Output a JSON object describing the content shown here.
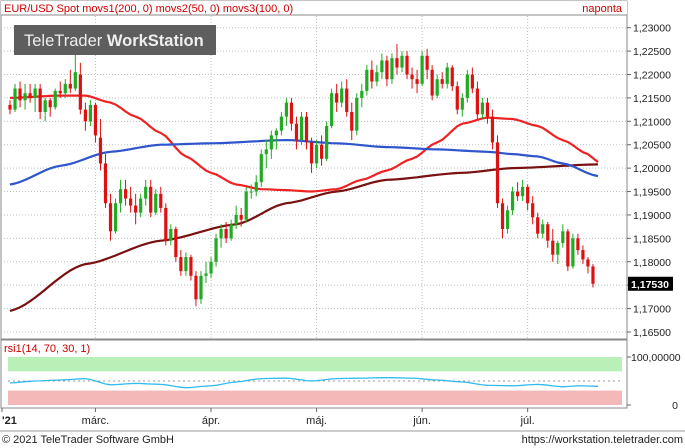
{
  "header": {
    "title": "EUR/USD Spot movs1(200, 0) movs2(50, 0) movs3(100, 0)",
    "period": "naponta"
  },
  "logo": {
    "text_plain": "TeleTrader ",
    "text_bold": "WorkStation"
  },
  "footer": {
    "copyright": "© 2021 TeleTrader Software GmbH",
    "url": "https://workstation.teletrader.com"
  },
  "colors": {
    "up_candle": "#22aa22",
    "down_candle": "#dd1111",
    "movs1": "#7a1010",
    "movs2": "#ee2222",
    "movs3": "#2e55cc",
    "rsi_line": "#33bbee",
    "rsi_high_band": "#b8f0b8",
    "rsi_low_band": "#f5b8b8",
    "grid": "#b8c0c8"
  },
  "chart_data": [
    {
      "type": "candlestick",
      "title": "EUR/USD Spot",
      "y_ticks": [
        "1,23000",
        "1,22500",
        "1,22000",
        "1,21500",
        "1,21000",
        "1,20500",
        "1,20000",
        "1,19500",
        "1,19000",
        "1,18500",
        "1,18000",
        "1,17500",
        "1,17000",
        "1,16500"
      ],
      "ylim": [
        1.1635,
        1.2325
      ],
      "last_price_label": "1,17530",
      "last_price": 1.1753,
      "x_labels": [
        "'21",
        "márc.",
        "ápr.",
        "máj.",
        "jún.",
        "júl."
      ],
      "x_label_positions": [
        0,
        17,
        40,
        61,
        82,
        103
      ],
      "n_days": 118,
      "grid": true,
      "candles": [
        [
          1.2135,
          1.2145,
          1.2115,
          1.2125
        ],
        [
          1.2125,
          1.218,
          1.212,
          1.217
        ],
        [
          1.217,
          1.2185,
          1.213,
          1.2145
        ],
        [
          1.2145,
          1.218,
          1.2125,
          1.216
        ],
        [
          1.216,
          1.218,
          1.214,
          1.215
        ],
        [
          1.215,
          1.218,
          1.212,
          1.217
        ],
        [
          1.217,
          1.218,
          1.2105,
          1.212
        ],
        [
          1.212,
          1.215,
          1.21,
          1.2145
        ],
        [
          1.2145,
          1.215,
          1.211,
          1.213
        ],
        [
          1.213,
          1.217,
          1.2125,
          1.2165
        ],
        [
          1.2165,
          1.2185,
          1.215,
          1.216
        ],
        [
          1.216,
          1.219,
          1.215,
          1.218
        ],
        [
          1.218,
          1.221,
          1.216,
          1.217
        ],
        [
          1.217,
          1.2245,
          1.2165,
          1.2205
        ],
        [
          1.22,
          1.2225,
          1.2115,
          1.2125
        ],
        [
          1.2125,
          1.214,
          1.208,
          1.21
        ],
        [
          1.21,
          1.2145,
          1.209,
          1.2135
        ],
        [
          1.2135,
          1.214,
          1.2055,
          1.207
        ],
        [
          1.2065,
          1.2105,
          1.1995,
          1.201
        ],
        [
          1.201,
          1.203,
          1.1915,
          1.1925
        ],
        [
          1.1925,
          1.1945,
          1.1845,
          1.1865
        ],
        [
          1.1865,
          1.1935,
          1.186,
          1.1925
        ],
        [
          1.1925,
          1.1975,
          1.1905,
          1.1955
        ],
        [
          1.1955,
          1.1975,
          1.192,
          1.1935
        ],
        [
          1.1935,
          1.196,
          1.1905,
          1.192
        ],
        [
          1.192,
          1.1945,
          1.188,
          1.1905
        ],
        [
          1.1905,
          1.1945,
          1.1895,
          1.1935
        ],
        [
          1.1935,
          1.1975,
          1.192,
          1.196
        ],
        [
          1.196,
          1.1975,
          1.1895,
          1.1905
        ],
        [
          1.1905,
          1.1955,
          1.19,
          1.1945
        ],
        [
          1.1945,
          1.196,
          1.1905,
          1.1915
        ],
        [
          1.1915,
          1.1925,
          1.1835,
          1.1845
        ],
        [
          1.1845,
          1.188,
          1.1835,
          1.187
        ],
        [
          1.187,
          1.1875,
          1.18,
          1.181
        ],
        [
          1.181,
          1.1825,
          1.177,
          1.178
        ],
        [
          1.178,
          1.182,
          1.177,
          1.181
        ],
        [
          1.181,
          1.1815,
          1.176,
          1.177
        ],
        [
          1.177,
          1.178,
          1.1705,
          1.172
        ],
        [
          1.172,
          1.178,
          1.171,
          1.177
        ],
        [
          1.177,
          1.18,
          1.1755,
          1.1775
        ],
        [
          1.1775,
          1.181,
          1.1765,
          1.18
        ],
        [
          1.18,
          1.186,
          1.179,
          1.185
        ],
        [
          1.185,
          1.188,
          1.183,
          1.187
        ],
        [
          1.187,
          1.1885,
          1.184,
          1.185
        ],
        [
          1.185,
          1.189,
          1.1845,
          1.188
        ],
        [
          1.188,
          1.192,
          1.187,
          1.19
        ],
        [
          1.19,
          1.1915,
          1.1875,
          1.189
        ],
        [
          1.189,
          1.196,
          1.1885,
          1.195
        ],
        [
          1.195,
          1.1965,
          1.1935,
          1.195
        ],
        [
          1.195,
          1.1985,
          1.194,
          1.197
        ],
        [
          1.197,
          1.204,
          1.196,
          1.203
        ],
        [
          1.203,
          1.206,
          1.2,
          1.204
        ],
        [
          1.204,
          1.208,
          1.202,
          1.207
        ],
        [
          1.207,
          1.2085,
          1.204,
          1.208
        ],
        [
          1.208,
          1.212,
          1.207,
          1.211
        ],
        [
          1.211,
          1.215,
          1.209,
          1.214
        ],
        [
          1.214,
          1.215,
          1.208,
          1.2095
        ],
        [
          1.2095,
          1.211,
          1.204,
          1.206
        ],
        [
          1.206,
          1.212,
          1.205,
          1.211
        ],
        [
          1.211,
          1.212,
          1.204,
          1.2055
        ],
        [
          1.2055,
          1.2065,
          1.199,
          1.201
        ],
        [
          1.201,
          1.206,
          1.2,
          1.205
        ],
        [
          1.205,
          1.207,
          1.2005,
          1.202
        ],
        [
          1.202,
          1.21,
          1.2015,
          1.209
        ],
        [
          1.209,
          1.217,
          1.2085,
          1.216
        ],
        [
          1.216,
          1.218,
          1.212,
          1.214
        ],
        [
          1.214,
          1.2185,
          1.213,
          1.217
        ],
        [
          1.217,
          1.219,
          1.211,
          1.212
        ],
        [
          1.212,
          1.214,
          1.206,
          1.208
        ],
        [
          1.208,
          1.216,
          1.207,
          1.215
        ],
        [
          1.215,
          1.218,
          1.213,
          1.2165
        ],
        [
          1.2165,
          1.222,
          1.2155,
          1.221
        ],
        [
          1.221,
          1.223,
          1.217,
          1.2185
        ],
        [
          1.2185,
          1.222,
          1.2175,
          1.2205
        ],
        [
          1.2205,
          1.2245,
          1.219,
          1.223
        ],
        [
          1.223,
          1.224,
          1.2175,
          1.219
        ],
        [
          1.219,
          1.2245,
          1.218,
          1.2235
        ],
        [
          1.2235,
          1.2265,
          1.22,
          1.2215
        ],
        [
          1.2215,
          1.225,
          1.2205,
          1.224
        ],
        [
          1.224,
          1.225,
          1.219,
          1.22
        ],
        [
          1.22,
          1.2215,
          1.217,
          1.219
        ],
        [
          1.219,
          1.221,
          1.216,
          1.218
        ],
        [
          1.218,
          1.225,
          1.2175,
          1.224
        ],
        [
          1.224,
          1.2255,
          1.219,
          1.221
        ],
        [
          1.221,
          1.222,
          1.2145,
          1.2155
        ],
        [
          1.2155,
          1.22,
          1.215,
          1.219
        ],
        [
          1.219,
          1.2205,
          1.217,
          1.218
        ],
        [
          1.218,
          1.2225,
          1.217,
          1.2215
        ],
        [
          1.2215,
          1.222,
          1.2165,
          1.2175
        ],
        [
          1.2175,
          1.2185,
          1.2115,
          1.2125
        ],
        [
          1.2125,
          1.216,
          1.211,
          1.215
        ],
        [
          1.215,
          1.221,
          1.214,
          1.22
        ],
        [
          1.22,
          1.2215,
          1.216,
          1.217
        ],
        [
          1.217,
          1.2185,
          1.2105,
          1.2115
        ],
        [
          1.2115,
          1.215,
          1.2105,
          1.214
        ],
        [
          1.214,
          1.215,
          1.2095,
          1.211
        ],
        [
          1.211,
          1.2125,
          1.204,
          1.2055
        ],
        [
          1.2055,
          1.207,
          1.1915,
          1.1925
        ],
        [
          1.1925,
          1.1935,
          1.185,
          1.187
        ],
        [
          1.187,
          1.192,
          1.186,
          1.191
        ],
        [
          1.191,
          1.196,
          1.19,
          1.195
        ],
        [
          1.195,
          1.197,
          1.193,
          1.194
        ],
        [
          1.194,
          1.1975,
          1.193,
          1.196
        ],
        [
          1.196,
          1.1965,
          1.191,
          1.1925
        ],
        [
          1.1925,
          1.194,
          1.188,
          1.1895
        ],
        [
          1.1895,
          1.1905,
          1.185,
          1.186
        ],
        [
          1.186,
          1.189,
          1.185,
          1.188
        ],
        [
          1.188,
          1.1885,
          1.183,
          1.1845
        ],
        [
          1.1845,
          1.187,
          1.18,
          1.1815
        ],
        [
          1.1815,
          1.1845,
          1.1795,
          1.184
        ],
        [
          1.184,
          1.188,
          1.183,
          1.1865
        ],
        [
          1.1865,
          1.187,
          1.178,
          1.179
        ],
        [
          1.179,
          1.186,
          1.1785,
          1.185
        ],
        [
          1.185,
          1.186,
          1.1815,
          1.1825
        ],
        [
          1.1825,
          1.1835,
          1.1795,
          1.1805
        ],
        [
          1.1805,
          1.181,
          1.1775,
          1.179
        ],
        [
          1.179,
          1.1795,
          1.1745,
          1.1753
        ]
      ],
      "series": [
        {
          "name": "movs1(200, 0)",
          "color_key": "movs1",
          "anchors": [
            [
              0,
              1.1695
            ],
            [
              15,
              1.1795
            ],
            [
              30,
              1.1845
            ],
            [
              45,
              1.188
            ],
            [
              55,
              1.1925
            ],
            [
              65,
              1.195
            ],
            [
              75,
              1.1975
            ],
            [
              90,
              1.199
            ],
            [
              100,
              1.2
            ],
            [
              117,
              1.2008
            ]
          ]
        },
        {
          "name": "movs2(50, 0)",
          "color_key": "movs2",
          "anchors": [
            [
              0,
              1.215
            ],
            [
              10,
              1.2155
            ],
            [
              15,
              1.2155
            ],
            [
              20,
              1.214
            ],
            [
              25,
              1.211
            ],
            [
              30,
              1.2075
            ],
            [
              35,
              1.2025
            ],
            [
              40,
              1.199
            ],
            [
              45,
              1.1965
            ],
            [
              50,
              1.1955
            ],
            [
              55,
              1.1953
            ],
            [
              60,
              1.195
            ],
            [
              65,
              1.1955
            ],
            [
              70,
              1.1975
            ],
            [
              75,
              1.1995
            ],
            [
              80,
              1.202
            ],
            [
              85,
              1.2055
            ],
            [
              90,
              1.2095
            ],
            [
              95,
              1.2108
            ],
            [
              100,
              1.2105
            ],
            [
              105,
              1.209
            ],
            [
              110,
              1.206
            ],
            [
              115,
              1.203
            ],
            [
              117,
              1.2013
            ]
          ]
        },
        {
          "name": "movs3(100, 0)",
          "color_key": "movs3",
          "anchors": [
            [
              0,
              1.1965
            ],
            [
              10,
              1.2005
            ],
            [
              20,
              1.2035
            ],
            [
              30,
              1.205
            ],
            [
              40,
              1.2053
            ],
            [
              55,
              1.206
            ],
            [
              65,
              1.2053
            ],
            [
              75,
              1.2045
            ],
            [
              85,
              1.204
            ],
            [
              95,
              1.2035
            ],
            [
              100,
              1.203
            ],
            [
              105,
              1.2025
            ],
            [
              110,
              1.201
            ],
            [
              117,
              1.1983
            ]
          ]
        }
      ]
    },
    {
      "type": "line",
      "title": "rsi1(14, 70, 30, 1)",
      "y_ticks": [
        "100,00000",
        "0"
      ],
      "ylim": [
        0,
        100
      ],
      "bands": {
        "high": 70,
        "low": 30
      },
      "series": [
        {
          "name": "rsi1",
          "color_key": "rsi_line",
          "anchors": [
            [
              0,
              46
            ],
            [
              5,
              50
            ],
            [
              10,
              52
            ],
            [
              15,
              55
            ],
            [
              20,
              42
            ],
            [
              25,
              45
            ],
            [
              30,
              43
            ],
            [
              35,
              36
            ],
            [
              40,
              40
            ],
            [
              45,
              48
            ],
            [
              50,
              55
            ],
            [
              55,
              56
            ],
            [
              60,
              50
            ],
            [
              65,
              55
            ],
            [
              70,
              56
            ],
            [
              75,
              57
            ],
            [
              80,
              56
            ],
            [
              85,
              52
            ],
            [
              90,
              48
            ],
            [
              95,
              41
            ],
            [
              100,
              40
            ],
            [
              105,
              43
            ],
            [
              110,
              38
            ],
            [
              113,
              40
            ],
            [
              117,
              39
            ]
          ]
        }
      ]
    }
  ]
}
